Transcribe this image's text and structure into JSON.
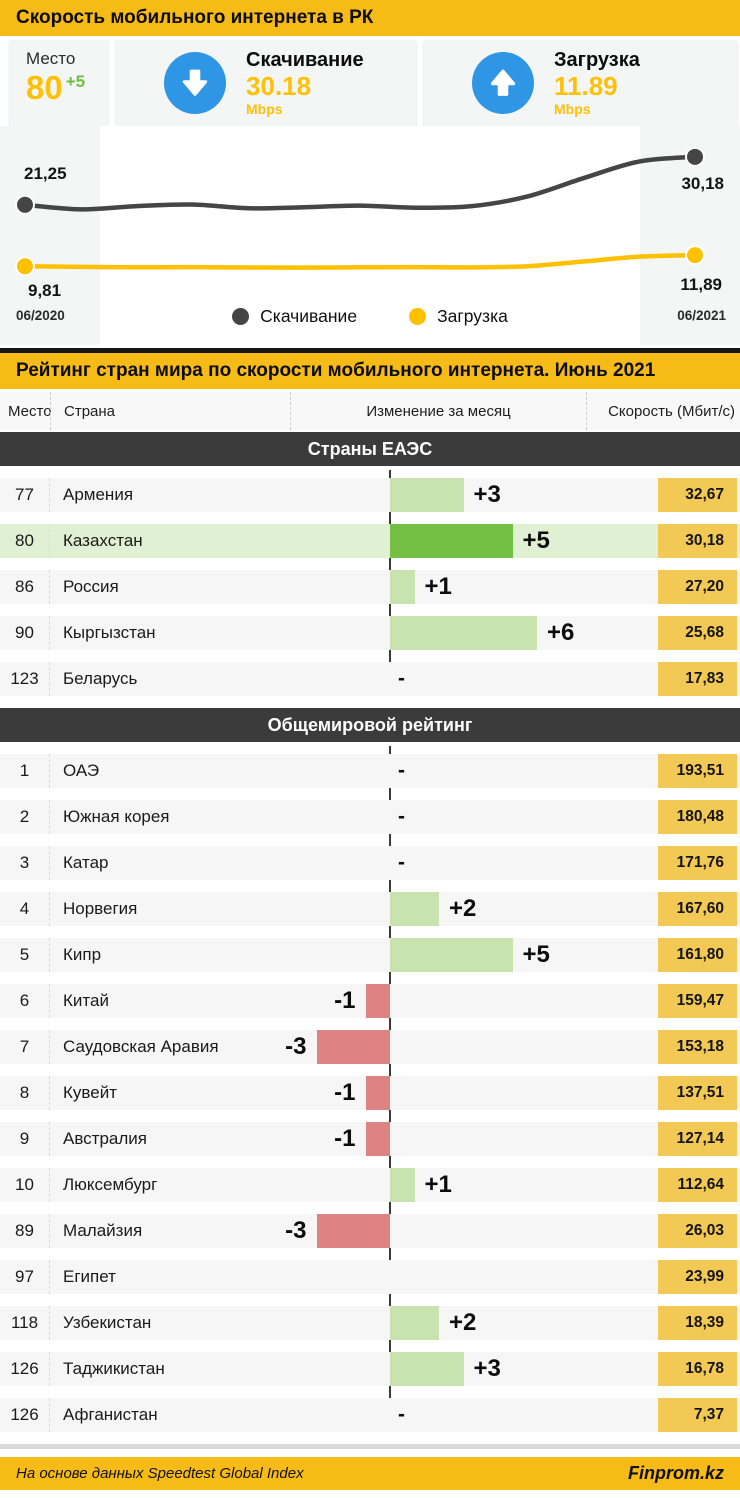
{
  "header": {
    "title": "Скорость мобильного интернета в РК"
  },
  "stats": {
    "rank": {
      "label": "Место",
      "value": "80",
      "delta": "+5"
    },
    "download": {
      "label": "Скачивание",
      "value": "30.18",
      "unit": "Mbps",
      "icon": "arrow-down-circle-icon"
    },
    "upload": {
      "label": "Загрузка",
      "value": "11.89",
      "unit": "Mbps",
      "icon": "arrow-up-circle-icon"
    }
  },
  "chart_data": {
    "type": "line",
    "x_start_label": "06/2020",
    "x_end_label": "06/2021",
    "ylim": [
      7,
      32
    ],
    "grid": false,
    "legend_position": "bottom-center",
    "legend": [
      {
        "name": "Скачивание",
        "color": "#454545"
      },
      {
        "name": "Загрузка",
        "color": "#FFC000"
      }
    ],
    "series": [
      {
        "name": "Скачивание",
        "color": "#454545",
        "start_label": "21,25",
        "end_label": "30,18",
        "values": [
          21.25,
          20.4,
          21.0,
          21.3,
          20.6,
          20.8,
          21.1,
          20.7,
          21.0,
          22.8,
          26.2,
          29.3,
          30.18
        ]
      },
      {
        "name": "Загрузка",
        "color": "#FFC000",
        "start_label": "9,81",
        "end_label": "11,89",
        "values": [
          9.81,
          9.7,
          9.62,
          9.66,
          9.58,
          9.55,
          9.62,
          9.66,
          9.6,
          9.82,
          10.7,
          11.6,
          11.89
        ]
      }
    ]
  },
  "ranking": {
    "title": "Рейтинг стран мира по скорости мобильного интернета. Июнь 2021",
    "columns": {
      "rank": "Место",
      "country": "Страна",
      "change": "Изменение за месяц",
      "speed": "Скорость (Мбит/с)"
    },
    "sections": [
      {
        "title": "Страны ЕАЭС",
        "rows": [
          {
            "rank": "77",
            "country": "Армения",
            "change": 3,
            "change_label": "+3",
            "speed": "32,67",
            "highlight": false
          },
          {
            "rank": "80",
            "country": "Казахстан",
            "change": 5,
            "change_label": "+5",
            "speed": "30,18",
            "highlight": true
          },
          {
            "rank": "86",
            "country": "Россия",
            "change": 1,
            "change_label": "+1",
            "speed": "27,20",
            "highlight": false
          },
          {
            "rank": "90",
            "country": "Кыргызстан",
            "change": 6,
            "change_label": "+6",
            "speed": "25,68",
            "highlight": false
          },
          {
            "rank": "123",
            "country": "Беларусь",
            "change": 0,
            "change_label": "-",
            "speed": "17,83",
            "highlight": false
          }
        ]
      },
      {
        "title": "Общемировой рейтинг",
        "rows": [
          {
            "rank": "1",
            "country": "ОАЭ",
            "change": 0,
            "change_label": "-",
            "speed": "193,51",
            "highlight": false
          },
          {
            "rank": "2",
            "country": "Южная корея",
            "change": 0,
            "change_label": "-",
            "speed": "180,48",
            "highlight": false
          },
          {
            "rank": "3",
            "country": "Катар",
            "change": 0,
            "change_label": "-",
            "speed": "171,76",
            "highlight": false
          },
          {
            "rank": "4",
            "country": "Норвегия",
            "change": 2,
            "change_label": "+2",
            "speed": "167,60",
            "highlight": false
          },
          {
            "rank": "5",
            "country": "Кипр",
            "change": 5,
            "change_label": "+5",
            "speed": "161,80",
            "highlight": false
          },
          {
            "rank": "6",
            "country": "Китай",
            "change": -1,
            "change_label": "-1",
            "speed": "159,47",
            "highlight": false
          },
          {
            "rank": "7",
            "country": "Саудовская Аравия",
            "change": -3,
            "change_label": "-3",
            "speed": "153,18",
            "highlight": false
          },
          {
            "rank": "8",
            "country": "Кувейт",
            "change": -1,
            "change_label": "-1",
            "speed": "137,51",
            "highlight": false
          },
          {
            "rank": "9",
            "country": "Австралия",
            "change": -1,
            "change_label": "-1",
            "speed": "127,14",
            "highlight": false
          },
          {
            "rank": "10",
            "country": "Люксембург",
            "change": 1,
            "change_label": "+1",
            "speed": "112,64",
            "highlight": false
          },
          {
            "rank": "89",
            "country": "Малайзия",
            "change": -3,
            "change_label": "-3",
            "speed": "26,03",
            "highlight": false
          },
          {
            "rank": "97",
            "country": "Египет",
            "change": null,
            "change_label": "",
            "speed": "23,99",
            "highlight": false
          },
          {
            "rank": "118",
            "country": "Узбекистан",
            "change": 2,
            "change_label": "+2",
            "speed": "18,39",
            "highlight": false
          },
          {
            "rank": "126",
            "country": "Таджикистан",
            "change": 3,
            "change_label": "+3",
            "speed": "16,78",
            "highlight": false
          },
          {
            "rank": "126",
            "country": "Афганистан",
            "change": 0,
            "change_label": "-",
            "speed": "7,37",
            "highlight": false
          }
        ]
      }
    ]
  },
  "footer": {
    "source": "На основе данных Speedtest Global Index",
    "brand": "Finprom.kz"
  },
  "colors": {
    "gold": "#F6BB17",
    "gold_text": "#FFC008",
    "blue": "#2E96E4",
    "green_delta": "#6DBE45",
    "bar_positive": "#C8E3B0",
    "bar_positive_strong": "#74C044",
    "bar_negative": "#DE8383",
    "row_bg": "#F6F6F6",
    "row_highlight": "#DFF0D3",
    "speed_box": "#F2C955",
    "band": "#3B3B3B"
  }
}
